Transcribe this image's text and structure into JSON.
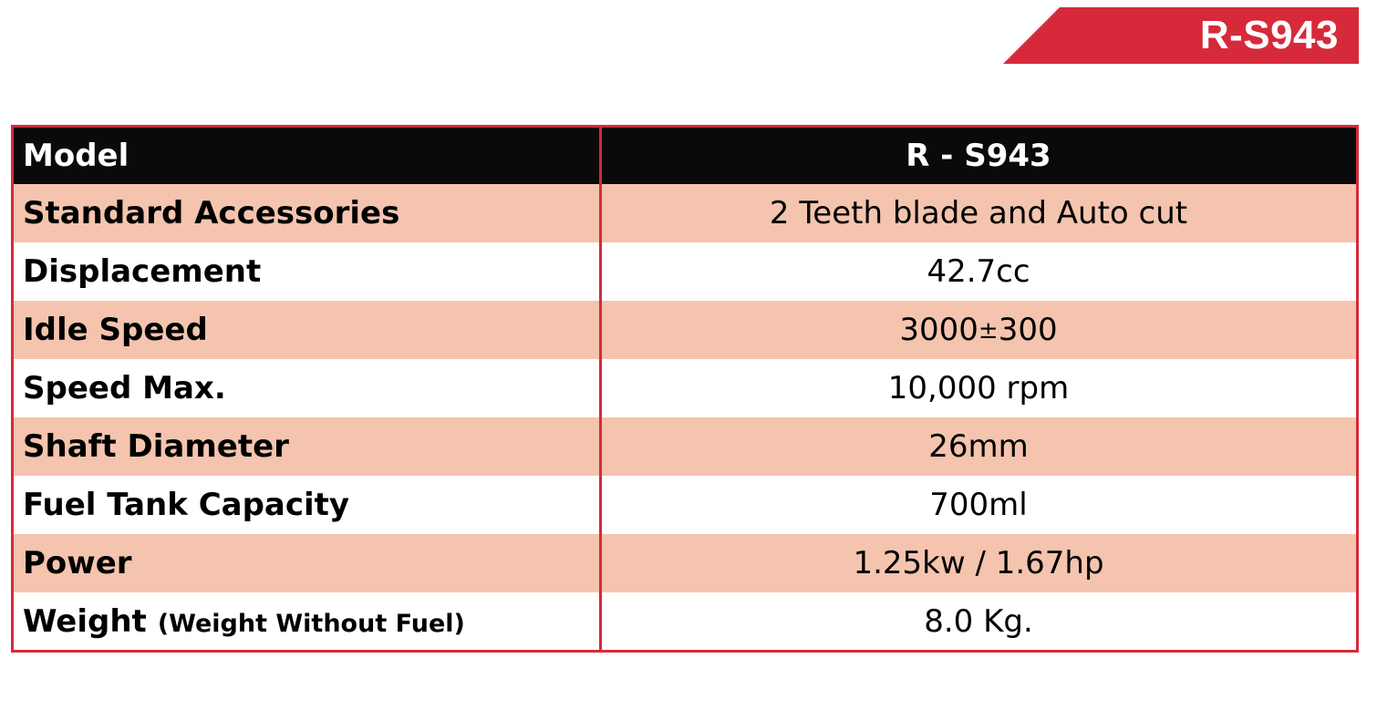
{
  "badge": {
    "label": "R-S943",
    "color": "#d62a3a"
  },
  "table": {
    "border_color": "#d62a3a",
    "header_background": "#0a0a0a",
    "shaded_row_color": "#f4c4ae",
    "header": {
      "label": "Model",
      "value": "R - S943"
    },
    "rows": [
      {
        "label": "Standard Accessories",
        "value": "2 Teeth blade and Auto cut"
      },
      {
        "label": "Displacement",
        "value": "42.7cc"
      },
      {
        "label": "Idle Speed",
        "value_main": "3000",
        "value_symbol": "±",
        "value_tail": "300"
      },
      {
        "label": "Speed Max.",
        "value": "10,000 rpm"
      },
      {
        "label": "Shaft Diameter",
        "value": "26mm"
      },
      {
        "label": "Fuel Tank Capacity",
        "value": "700ml"
      },
      {
        "label": "Power",
        "value": "1.25kw / 1.67hp"
      },
      {
        "label": "Weight",
        "note": "(Weight Without Fuel)",
        "value": "8.0 Kg."
      }
    ]
  }
}
